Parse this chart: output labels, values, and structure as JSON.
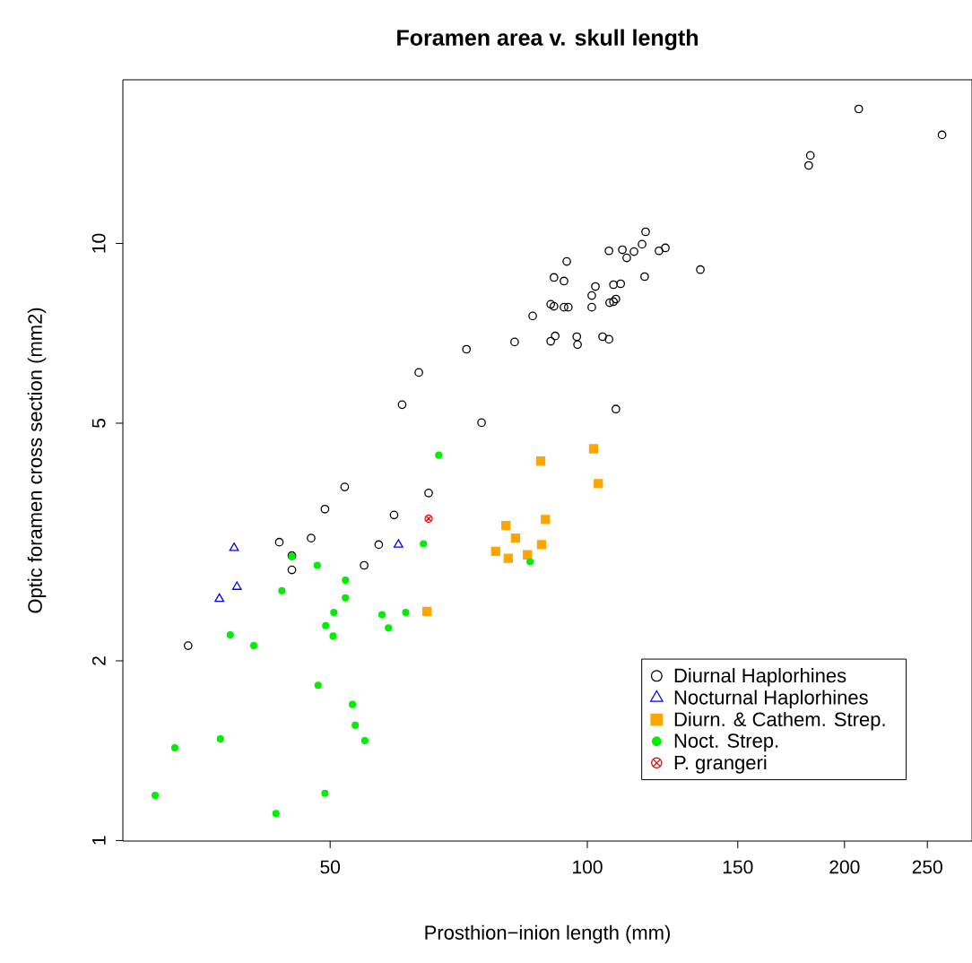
{
  "chart_data": {
    "type": "scatter",
    "title": "Foramen area v. skull length",
    "xlabel": "Prosthion−inion length (mm)",
    "ylabel": "Optic foramen cross section (mm2)",
    "log": "xy",
    "xlim": [
      28.6,
      282
    ],
    "ylim": [
      0.998,
      18.8
    ],
    "xticks": [
      50,
      100,
      150,
      200,
      250
    ],
    "yticks": [
      1,
      2,
      5,
      10
    ],
    "grid": false,
    "legend": "bottom right",
    "series": [
      {
        "name": "Diurnal Haplorhines",
        "color": "#000000",
        "marker": "circle",
        "x": [
          34.1,
          43.6,
          45.1,
          45.1,
          47.5,
          49.3,
          52.0,
          54.8,
          57.0,
          59.4,
          60.7,
          63.5,
          65.2,
          72.2,
          75.2,
          82.2,
          86.3,
          90.6,
          91.4,
          93.9,
          95.0,
          90.6,
          91.7,
          91.4,
          93.9,
          94.6,
          97.2,
          97.4,
          101.2,
          101.2,
          102.2,
          104.2,
          106.0,
          106.0,
          106.2,
          107.3,
          108.0,
          107.3,
          109.4,
          109.9,
          111.2,
          113.4,
          115.9,
          117.0,
          116.7,
          121.3,
          123.4,
          135.6,
          181.6,
          182.4,
          207.8,
          260.1,
          108.0
        ],
        "values": [
          2.12,
          3.16,
          3.0,
          2.84,
          3.21,
          3.59,
          3.91,
          2.89,
          3.13,
          3.51,
          5.37,
          6.08,
          3.82,
          6.65,
          5.01,
          6.84,
          7.56,
          7.91,
          7.85,
          7.82,
          7.82,
          6.86,
          7.0,
          8.77,
          8.65,
          9.33,
          6.98,
          6.77,
          7.82,
          8.18,
          8.47,
          6.98,
          6.91,
          9.72,
          7.96,
          7.99,
          8.07,
          8.53,
          8.56,
          9.76,
          9.46,
          9.69,
          9.97,
          10.46,
          8.8,
          9.72,
          9.83,
          9.04,
          13.51,
          14.04,
          16.8,
          15.2,
          5.28
        ]
      },
      {
        "name": "Nocturnal Haplorhines",
        "color": "#0000ff",
        "marker": "triangle",
        "x": [
          38.6,
          38.9,
          37.1,
          60.1
        ],
        "values": [
          3.09,
          2.66,
          2.54,
          3.13
        ]
      },
      {
        "name": "Diurn. & Cathem. Strep.",
        "color": "#ffa500",
        "marker": "square",
        "x": [
          101.7,
          88.2,
          103.0,
          89.3,
          80.3,
          82.4,
          88.4,
          78.1,
          80.8,
          85.1,
          64.9
        ],
        "values": [
          4.53,
          4.32,
          3.96,
          3.45,
          3.37,
          3.21,
          3.13,
          3.05,
          2.97,
          3.01,
          2.42
        ]
      },
      {
        "name": "Noct. Strep.",
        "color": "#00ee00",
        "marker": "circle",
        "x": [
          67.0,
          64.3,
          45.1,
          48.3,
          52.1,
          52.1,
          43.9,
          50.5,
          49.4,
          50.4,
          57.5,
          61.3,
          58.5,
          38.2,
          40.7,
          48.4,
          53.1,
          53.5,
          54.9,
          32.9,
          37.2,
          31.2,
          49.3,
          43.2,
          85.7
        ],
        "values": [
          4.42,
          3.14,
          2.99,
          2.89,
          2.73,
          2.55,
          2.62,
          2.41,
          2.29,
          2.2,
          2.39,
          2.41,
          2.27,
          2.21,
          2.12,
          1.82,
          1.69,
          1.56,
          1.47,
          1.43,
          1.48,
          1.19,
          1.2,
          1.11,
          2.93
        ]
      },
      {
        "name": "P. grangeri",
        "color": "#ff0000",
        "marker": "cross",
        "x": [
          65.2
        ],
        "values": [
          3.46
        ]
      }
    ]
  }
}
